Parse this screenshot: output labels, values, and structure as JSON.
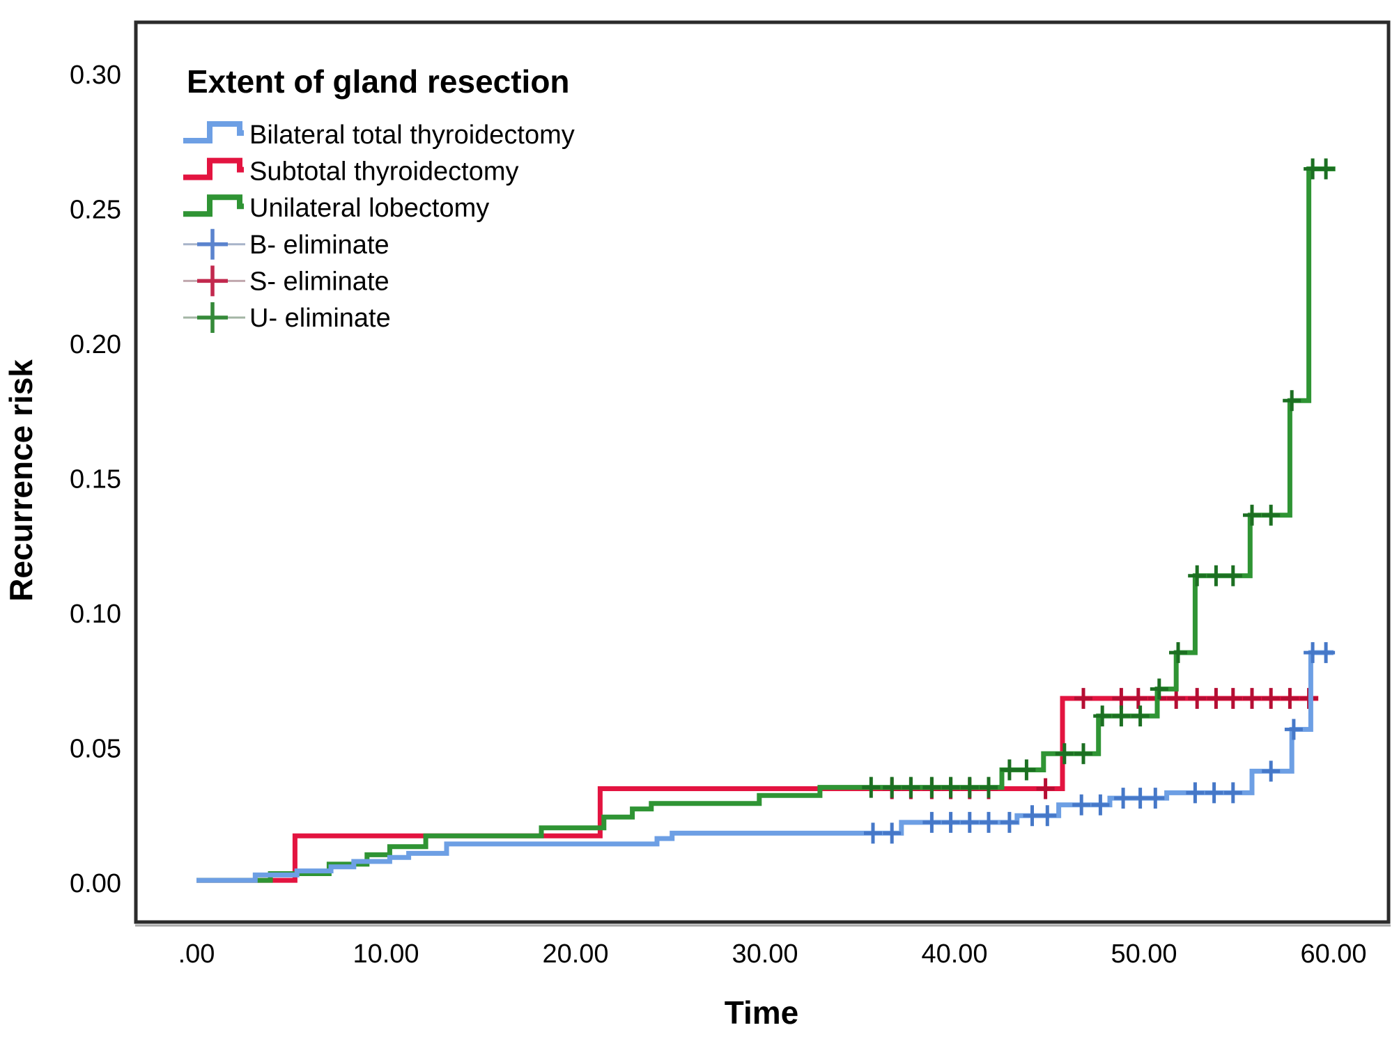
{
  "chart_data": {
    "type": "line",
    "subtype": "step-cumulative-incidence",
    "legend_title": "Extent of gland resection",
    "xlabel": "Time",
    "ylabel": "Recurrence risk",
    "xlim": [
      0,
      60
    ],
    "ylim": [
      0,
      0.3
    ],
    "grid": "off",
    "legend_position": "top-left-inside",
    "x_ticks": [
      {
        "value": 0,
        "label": ".00"
      },
      {
        "value": 10,
        "label": "10.00"
      },
      {
        "value": 20,
        "label": "20.00"
      },
      {
        "value": 30,
        "label": "30.00"
      },
      {
        "value": 40,
        "label": "40.00"
      },
      {
        "value": 50,
        "label": "50.00"
      },
      {
        "value": 60,
        "label": "60.00"
      }
    ],
    "y_ticks": [
      {
        "value": 0.3,
        "label": "0.30"
      },
      {
        "value": 0.25,
        "label": "0.25"
      },
      {
        "value": 0.2,
        "label": "0.20"
      },
      {
        "value": 0.15,
        "label": "0.15"
      },
      {
        "value": 0.1,
        "label": "0.10"
      },
      {
        "value": 0.05,
        "label": "0.05"
      },
      {
        "value": 0.0,
        "label": "0.00"
      }
    ],
    "series": [
      {
        "name": "Subtotal thyroidectomy",
        "key": "subtotal",
        "color": "#E31440",
        "censor_color": "#B50E33",
        "steps": [
          [
            0,
            0.001
          ],
          [
            5.2,
            0.0175
          ],
          [
            21.3,
            0.035
          ],
          [
            45.7,
            0.0685
          ]
        ],
        "end": 59.2,
        "censors": [
          36.7,
          37.7,
          38.8,
          39.8,
          40.8,
          41.8,
          44.8,
          46.8,
          48.8,
          49.7,
          50.7,
          51.7,
          52.8,
          53.8,
          54.7,
          55.7,
          56.7,
          57.7,
          58.7
        ]
      },
      {
        "name": "Unilateral lobectomy",
        "key": "unilateral",
        "color": "#2F9434",
        "censor_color": "#1C6F22",
        "steps": [
          [
            0,
            0.001
          ],
          [
            3.9,
            0.0035
          ],
          [
            7.0,
            0.007
          ],
          [
            9.0,
            0.0105
          ],
          [
            10.2,
            0.0135
          ],
          [
            12.1,
            0.0175
          ],
          [
            18.2,
            0.0205
          ],
          [
            21.5,
            0.0245
          ],
          [
            23.0,
            0.0275
          ],
          [
            24.0,
            0.0295
          ],
          [
            29.7,
            0.0325
          ],
          [
            32.9,
            0.0355
          ],
          [
            42.5,
            0.042
          ],
          [
            44.7,
            0.048
          ],
          [
            47.6,
            0.062
          ],
          [
            50.7,
            0.072
          ],
          [
            51.7,
            0.0855
          ],
          [
            52.7,
            0.114
          ],
          [
            55.6,
            0.1365
          ],
          [
            57.7,
            0.179
          ],
          [
            58.7,
            0.265
          ]
        ],
        "end": 60.1,
        "censors": [
          35.6,
          36.7,
          37.7,
          38.8,
          39.8,
          40.8,
          41.8,
          42.9,
          43.8,
          45.8,
          46.8,
          47.8,
          48.8,
          49.8,
          50.8,
          51.8,
          52.8,
          53.8,
          54.7,
          55.7,
          56.7,
          57.8,
          58.9,
          59.6
        ]
      },
      {
        "name": "Bilateral total thyroidectomy",
        "key": "bilateral",
        "color": "#6D9FE4",
        "censor_color": "#4678C8",
        "steps": [
          [
            0,
            0.001
          ],
          [
            3.1,
            0.003
          ],
          [
            5.3,
            0.0045
          ],
          [
            7.1,
            0.006
          ],
          [
            8.3,
            0.008
          ],
          [
            10.2,
            0.0095
          ],
          [
            11.2,
            0.011
          ],
          [
            13.2,
            0.0145
          ],
          [
            24.3,
            0.0165
          ],
          [
            25.1,
            0.0185
          ],
          [
            37.2,
            0.0225
          ],
          [
            43.3,
            0.025
          ],
          [
            45.5,
            0.029
          ],
          [
            48.2,
            0.0315
          ],
          [
            51.2,
            0.0335
          ],
          [
            55.7,
            0.0415
          ],
          [
            57.8,
            0.057
          ],
          [
            58.8,
            0.0855
          ]
        ],
        "end": 60.0,
        "censors": [
          35.7,
          36.7,
          38.8,
          39.8,
          40.8,
          41.8,
          42.9,
          44.1,
          44.9,
          46.7,
          47.7,
          48.9,
          49.8,
          50.6,
          52.7,
          53.7,
          54.7,
          56.7,
          57.9,
          58.9,
          59.6
        ]
      }
    ]
  },
  "legend": {
    "title": "Extent of gland resection",
    "entries": [
      {
        "label": "Bilateral total thyroidectomy",
        "type": "step",
        "color": "#6D9FE4",
        "line_color": "#6D9FE4"
      },
      {
        "label": "Subtotal thyroidectomy",
        "type": "step",
        "color": "#E31440",
        "line_color": "#E31440"
      },
      {
        "label": "Unilateral lobectomy",
        "type": "step",
        "color": "#2F9434",
        "line_color": "#2F9434"
      },
      {
        "label": "B- eliminate",
        "type": "plus",
        "color": "#5B84CE",
        "line_color": "#A7B4C9"
      },
      {
        "label": "S- eliminate",
        "type": "plus",
        "color": "#C2294E",
        "line_color": "#C0A7AD"
      },
      {
        "label": "U- eliminate",
        "type": "plus",
        "color": "#358A39",
        "line_color": "#A3B5A4"
      }
    ]
  },
  "colors": {
    "background": "#ffffff",
    "frame": "#2b2b2b",
    "text": "#000000"
  }
}
